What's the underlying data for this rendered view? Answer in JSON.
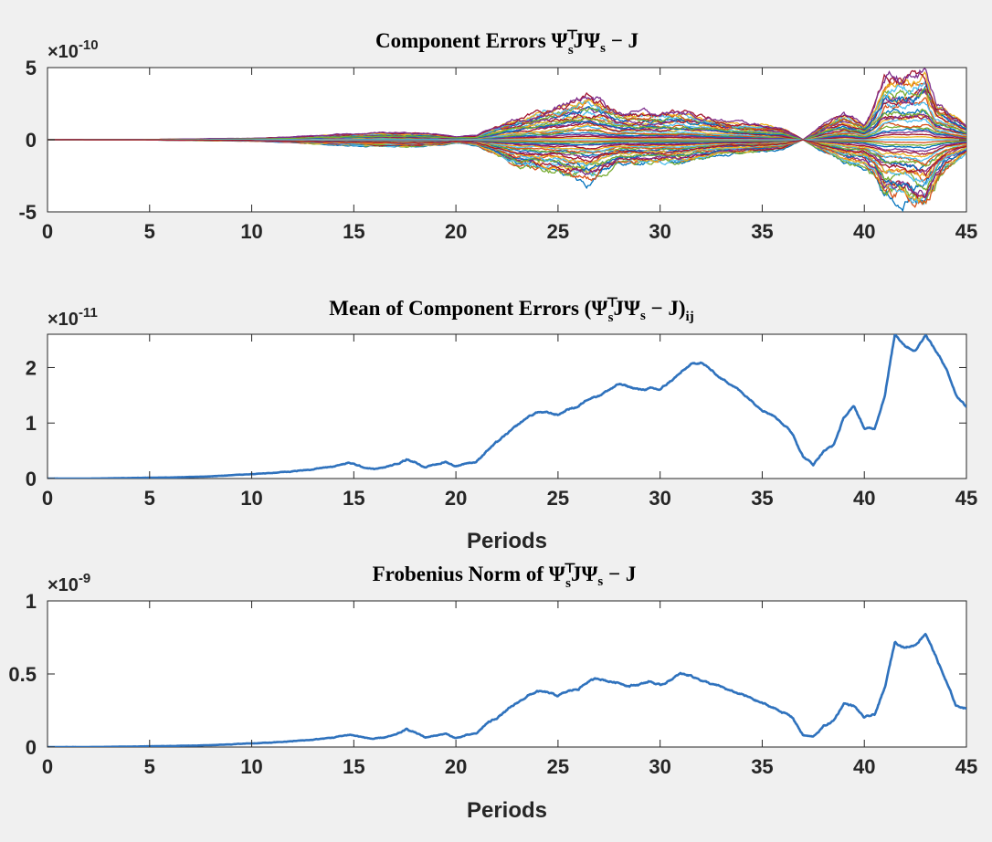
{
  "colors": {
    "figure_background": "#f0f0f0",
    "axes_background": "#ffffff",
    "axis_color": "#262626",
    "mean_line": "#2f72bd",
    "frob_line": "#2f72bd",
    "component_palette": [
      "#0072bd",
      "#d95319",
      "#edb120",
      "#7e2f8e",
      "#77ac30",
      "#4dbeee",
      "#a2142f"
    ]
  },
  "chart_data": [
    {
      "type": "line",
      "title_parts": {
        "prefix": "Component Errors  ",
        "psi": "Ψ",
        "sub": "s",
        "sup": "⊤",
        "mid": "JΨ",
        "sub2": "s",
        "suffix": " − J"
      },
      "exponent_label": {
        "base": "×10",
        "power": "-10"
      },
      "xlim": [
        0,
        45
      ],
      "ylim": [
        -5,
        5
      ],
      "xticks": [
        "0",
        "5",
        "10",
        "15",
        "20",
        "25",
        "30",
        "35",
        "40",
        "45"
      ],
      "xtick_values": [
        0,
        5,
        10,
        15,
        20,
        25,
        30,
        35,
        40,
        45
      ],
      "yticks": [
        "-5",
        "0",
        "5"
      ],
      "ytick_values": [
        -5,
        0,
        5
      ],
      "xlabel": "",
      "series_count": 49,
      "envelope": {
        "x": [
          0,
          5,
          10,
          12,
          15,
          17,
          19,
          20,
          21,
          23,
          25,
          26.5,
          27,
          28,
          30,
          31,
          32,
          33,
          35,
          36,
          37,
          38,
          39,
          40,
          40.5,
          41,
          42,
          42.5,
          43,
          43.5,
          44,
          45
        ],
        "upper": [
          0,
          0.02,
          0.1,
          0.2,
          0.4,
          0.5,
          0.4,
          0.2,
          0.3,
          1.5,
          2.2,
          2.9,
          2.6,
          1.8,
          1.8,
          1.9,
          1.6,
          1.3,
          1.0,
          0.8,
          0.0,
          1.0,
          1.8,
          1.0,
          2.2,
          4.2,
          4.1,
          4.3,
          4.7,
          2.5,
          2.0,
          1.0
        ],
        "lower": [
          0,
          -0.02,
          -0.1,
          -0.2,
          -0.4,
          -0.5,
          -0.4,
          -0.2,
          -0.4,
          -1.8,
          -2.2,
          -2.8,
          -2.4,
          -1.6,
          -1.6,
          -1.6,
          -1.3,
          -1.0,
          -0.8,
          -0.6,
          0.0,
          -0.8,
          -1.5,
          -1.8,
          -2.5,
          -3.8,
          -4.0,
          -4.4,
          -4.8,
          -3.2,
          -2.0,
          -1.0
        ]
      }
    },
    {
      "type": "line",
      "title_parts": {
        "prefix": "Mean of Component Errors  (",
        "psi": "Ψ",
        "sub": "s",
        "sup": "⊤",
        "mid": "JΨ",
        "sub2": "s",
        "suffix": " − J)",
        "sub3": "ij"
      },
      "exponent_label": {
        "base": "×10",
        "power": "-11"
      },
      "xlim": [
        0,
        45
      ],
      "ylim": [
        0,
        2.6
      ],
      "xticks": [
        "0",
        "5",
        "10",
        "15",
        "20",
        "25",
        "30",
        "35",
        "40",
        "45"
      ],
      "xtick_values": [
        0,
        5,
        10,
        15,
        20,
        25,
        30,
        35,
        40,
        45
      ],
      "yticks": [
        "0",
        "1",
        "2"
      ],
      "ytick_values": [
        0,
        1,
        2
      ],
      "xlabel": "Periods",
      "x": [
        0,
        2,
        4,
        6,
        8,
        10,
        11,
        12,
        13,
        14,
        14.8,
        15.5,
        16,
        16.5,
        17,
        17.6,
        18,
        18.5,
        19,
        19.5,
        20,
        20.5,
        21,
        21.5,
        22,
        22.5,
        23,
        23.5,
        24,
        24.5,
        25,
        25.5,
        26,
        26.5,
        27,
        27.5,
        28,
        28.5,
        29,
        29.5,
        30,
        30.5,
        31,
        31.5,
        32,
        32.5,
        33,
        33.5,
        34,
        34.5,
        35,
        35.5,
        36,
        36.5,
        37,
        37.5,
        38,
        38.5,
        39,
        39.5,
        40,
        40.5,
        41,
        41.5,
        42,
        42.5,
        43,
        43.5,
        44,
        44.5,
        45
      ],
      "y": [
        0,
        0,
        0.01,
        0.02,
        0.04,
        0.08,
        0.1,
        0.13,
        0.17,
        0.22,
        0.28,
        0.2,
        0.17,
        0.2,
        0.25,
        0.35,
        0.3,
        0.2,
        0.25,
        0.3,
        0.22,
        0.28,
        0.3,
        0.5,
        0.65,
        0.8,
        0.95,
        1.1,
        1.2,
        1.18,
        1.15,
        1.25,
        1.3,
        1.45,
        1.5,
        1.6,
        1.7,
        1.65,
        1.6,
        1.62,
        1.6,
        1.75,
        1.9,
        2.05,
        2.1,
        1.95,
        1.8,
        1.7,
        1.55,
        1.4,
        1.25,
        1.15,
        1.0,
        0.8,
        0.4,
        0.25,
        0.5,
        0.6,
        1.1,
        1.3,
        0.9,
        0.9,
        1.5,
        2.6,
        2.4,
        2.3,
        2.6,
        2.3,
        2.0,
        1.5,
        1.3
      ],
      "line_color": "#2f72bd"
    },
    {
      "type": "line",
      "title_parts": {
        "prefix": "Frobenius Norm of  ",
        "psi": "Ψ",
        "sub": "s",
        "sup": "⊤",
        "mid": "JΨ",
        "sub2": "s",
        "suffix": " − J"
      },
      "exponent_label": {
        "base": "×10",
        "power": "-9"
      },
      "xlim": [
        0,
        45
      ],
      "ylim": [
        0,
        1
      ],
      "xticks": [
        "0",
        "5",
        "10",
        "15",
        "20",
        "25",
        "30",
        "35",
        "40",
        "45"
      ],
      "xtick_values": [
        0,
        5,
        10,
        15,
        20,
        25,
        30,
        35,
        40,
        45
      ],
      "yticks": [
        "0",
        "0.5",
        "1"
      ],
      "ytick_values": [
        0,
        0.5,
        1
      ],
      "xlabel": "Periods",
      "x": [
        0,
        2,
        4,
        6,
        8,
        10,
        11,
        12,
        13,
        14,
        14.8,
        15.5,
        16,
        16.5,
        17,
        17.6,
        18,
        18.5,
        19,
        19.5,
        20,
        20.5,
        21,
        21.5,
        22,
        22.5,
        23,
        23.5,
        24,
        24.5,
        25,
        25.5,
        26,
        26.5,
        27,
        27.5,
        28,
        28.5,
        29,
        29.5,
        30,
        30.5,
        31,
        31.5,
        32,
        32.5,
        33,
        33.5,
        34,
        34.5,
        35,
        35.5,
        36,
        36.5,
        37,
        37.5,
        38,
        38.5,
        39,
        39.5,
        40,
        40.5,
        41,
        41.5,
        42,
        42.5,
        43,
        43.5,
        44,
        44.5,
        45
      ],
      "y": [
        0,
        0,
        0.003,
        0.007,
        0.013,
        0.025,
        0.03,
        0.04,
        0.05,
        0.065,
        0.085,
        0.065,
        0.055,
        0.065,
        0.08,
        0.12,
        0.1,
        0.065,
        0.08,
        0.09,
        0.06,
        0.08,
        0.09,
        0.16,
        0.2,
        0.25,
        0.3,
        0.35,
        0.38,
        0.37,
        0.35,
        0.38,
        0.4,
        0.45,
        0.47,
        0.45,
        0.44,
        0.42,
        0.43,
        0.45,
        0.42,
        0.46,
        0.5,
        0.49,
        0.46,
        0.43,
        0.41,
        0.38,
        0.36,
        0.33,
        0.3,
        0.27,
        0.24,
        0.2,
        0.08,
        0.07,
        0.14,
        0.18,
        0.3,
        0.28,
        0.2,
        0.22,
        0.4,
        0.72,
        0.68,
        0.7,
        0.78,
        0.62,
        0.45,
        0.28,
        0.27
      ],
      "line_color": "#2f72bd"
    }
  ]
}
